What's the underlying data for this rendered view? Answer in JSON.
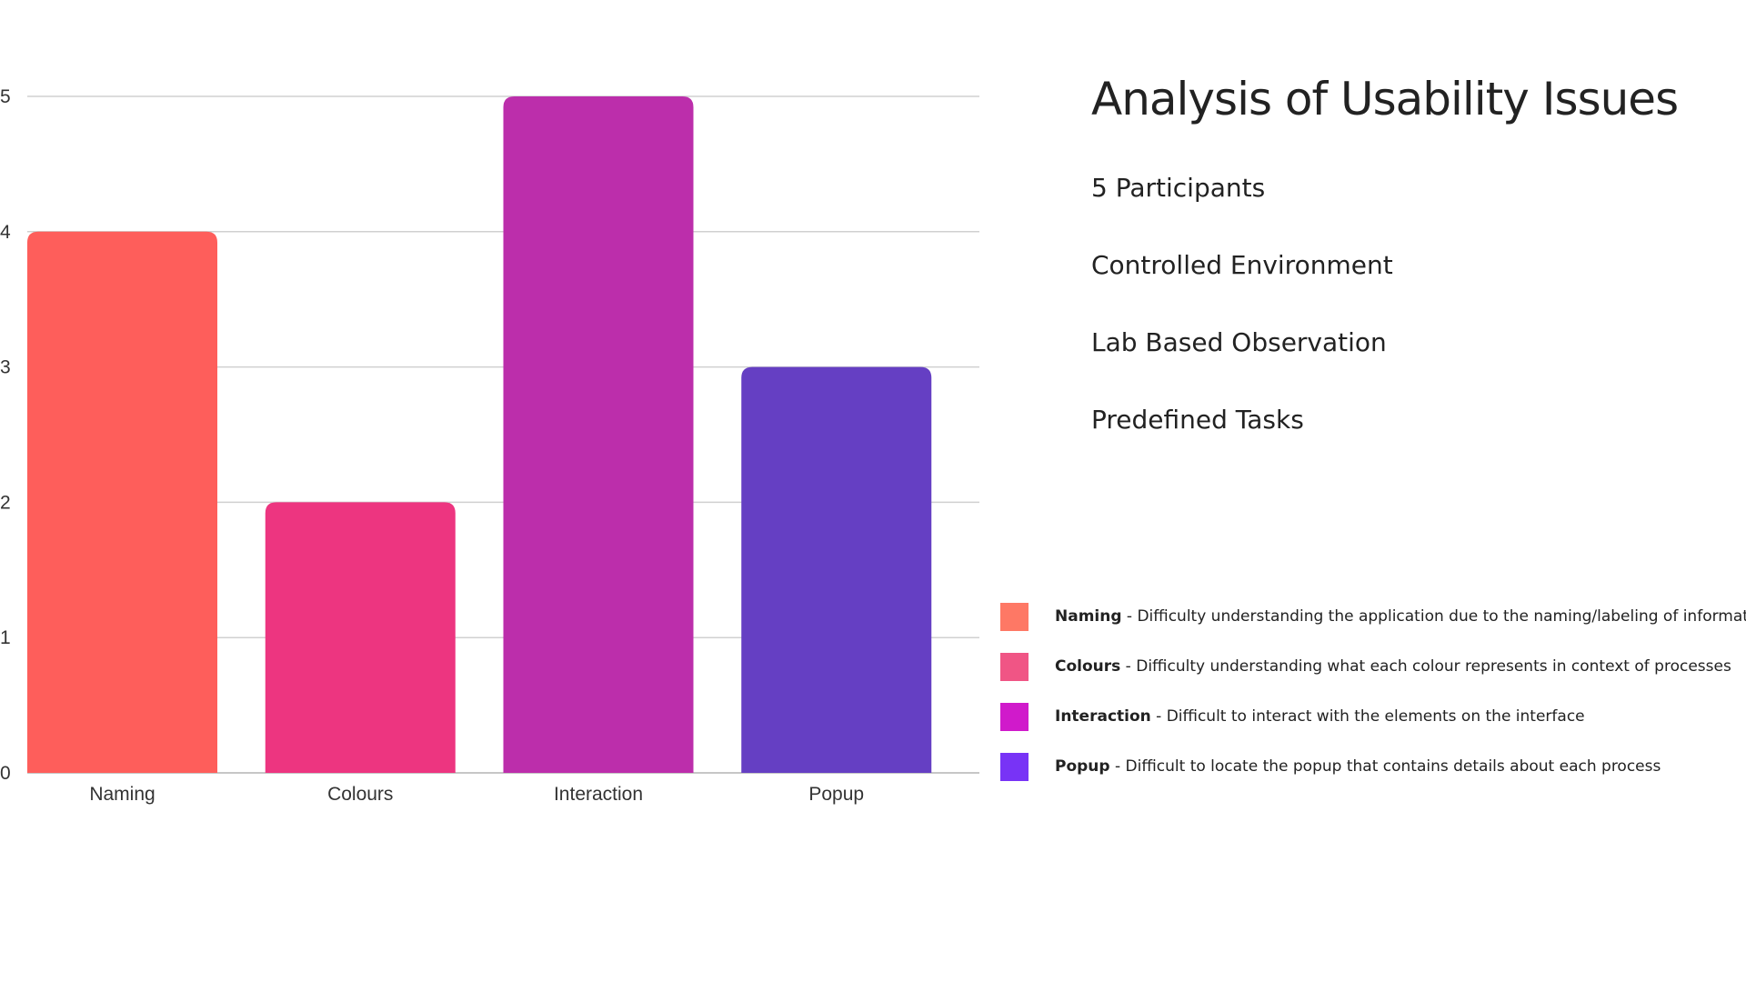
{
  "chart_data": {
    "type": "bar",
    "categories": [
      "Naming",
      "Colours",
      "Interaction",
      "Popup"
    ],
    "values": [
      4,
      2,
      5,
      3
    ],
    "bar_colors": [
      "#fe5e5b",
      "#ed3580",
      "#bc2eab",
      "#653fc3"
    ],
    "title": "",
    "xlabel": "",
    "ylabel": "",
    "ylim": [
      0,
      5
    ],
    "yticks": [
      "0",
      "1",
      "2",
      "3",
      "4",
      "5"
    ],
    "grid": true,
    "legend_position": "right"
  },
  "panel": {
    "title": "Analysis of Usability Issues",
    "facts": [
      "5 Participants",
      "Controlled Environment",
      "Lab Based Observation",
      "Predefined Tasks"
    ]
  },
  "legend": [
    {
      "name": "Naming",
      "description": " - Difficulty understanding the application due to the naming/labeling of information",
      "color": "#fe7865"
    },
    {
      "name": "Colours",
      "description": " - Difficulty understanding what each colour represents in context of processes",
      "color": "#f05585"
    },
    {
      "name": "Interaction",
      "description": " - Difficult to interact with the elements on the interface",
      "color": "#d01acb"
    },
    {
      "name": "Popup",
      "description": " - Difficult to locate the popup that contains details about each process",
      "color": "#7833f6"
    }
  ]
}
